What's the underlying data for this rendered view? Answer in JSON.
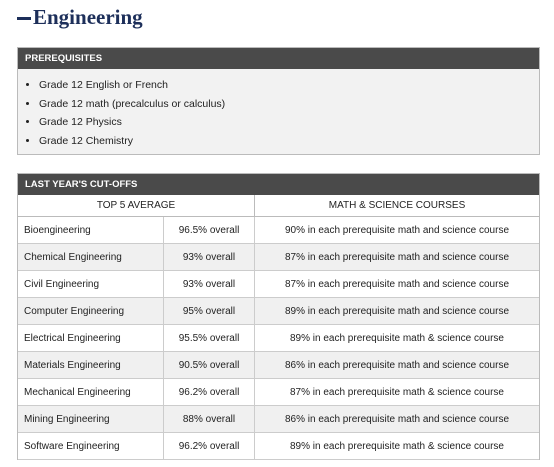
{
  "title": "Engineering",
  "prerequisites": {
    "heading": "PREREQUISITES",
    "items": [
      "Grade 12 English or French",
      "Grade 12 math (precalculus or calculus)",
      "Grade 12 Physics",
      "Grade 12 Chemistry"
    ]
  },
  "cutoffs": {
    "heading": "LAST YEAR'S CUT-OFFS",
    "columns": [
      "TOP 5 AVERAGE",
      "MATH & SCIENCE COURSES"
    ],
    "rows": [
      [
        "Bioengineering",
        "96.5% overall",
        "90% in each prerequisite math and science course"
      ],
      [
        "Chemical Engineering",
        "93% overall",
        "87% in each prerequisite math and science course"
      ],
      [
        "Civil Engineering",
        "93% overall",
        "87% in each prerequisite math and science course"
      ],
      [
        "Computer Engineering",
        "95% overall",
        "89% in each prerequisite math and science course"
      ],
      [
        "Electrical Engineering",
        "95.5% overall",
        "89% in each prerequisite math & science course"
      ],
      [
        "Materials Engineering",
        "90.5% overall",
        "86% in each prerequisite math and science course"
      ],
      [
        "Mechanical Engineering",
        "96.2% overall",
        "87% in each prerequisite math & science course"
      ],
      [
        "Mining Engineering",
        "88% overall",
        "86% in each prerequisite math and science course"
      ],
      [
        "Software Engineering",
        "96.2% overall",
        "89% in each prerequisite math & science course"
      ]
    ]
  }
}
